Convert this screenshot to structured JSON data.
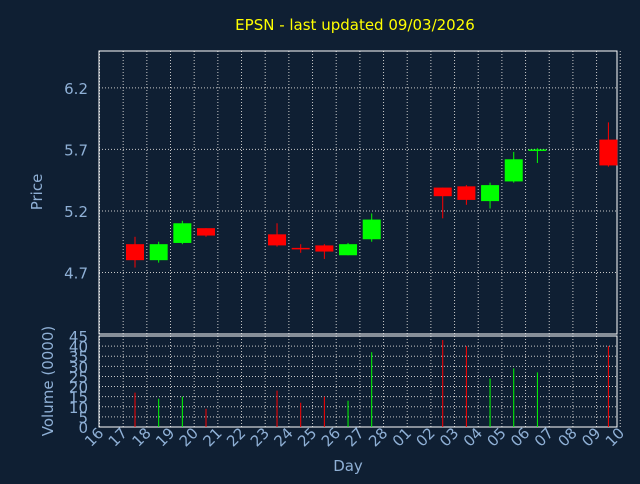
{
  "chart_data": {
    "type": "candlestick",
    "title": "EPSN - last updated 09/03/2026",
    "ylabel": "Price",
    "volume_ylabel": "Volume (0000)",
    "xlabel": "Day",
    "x_ticks": [
      "16",
      "17",
      "18",
      "19",
      "20",
      "21",
      "22",
      "23",
      "24",
      "25",
      "26",
      "27",
      "28",
      "01",
      "02",
      "03",
      "04",
      "05",
      "06",
      "07",
      "08",
      "09",
      "10"
    ],
    "ylim": [
      4.2,
      6.5
    ],
    "y_ticks": [
      "4.7",
      "5.2",
      "5.7",
      "6.2"
    ],
    "volume_ylim": [
      0,
      45
    ],
    "volume_ticks": [
      "0",
      "5",
      "10",
      "15",
      "20",
      "25",
      "30",
      "35",
      "40",
      "45"
    ],
    "grid": true,
    "colors": {
      "background": "#0f1f33",
      "plot_border": "#ffffff",
      "grid": "#c8c8c8",
      "title": "#ffff00",
      "axis_text": "#8fb0d6",
      "up": "#00ff00",
      "down": "#ff0000"
    },
    "candles": [
      {
        "day": "17",
        "open": 4.93,
        "high": 4.99,
        "low": 4.74,
        "close": 4.8
      },
      {
        "day": "18",
        "open": 4.8,
        "high": 4.95,
        "low": 4.78,
        "close": 4.93
      },
      {
        "day": "19",
        "open": 4.94,
        "high": 5.12,
        "low": 4.93,
        "close": 5.1
      },
      {
        "day": "20",
        "open": 5.06,
        "high": 5.06,
        "low": 4.99,
        "close": 5.0
      },
      {
        "day": "23",
        "open": 5.01,
        "high": 5.1,
        "low": 4.91,
        "close": 4.92
      },
      {
        "day": "24",
        "open": 4.9,
        "high": 4.93,
        "low": 4.86,
        "close": 4.89
      },
      {
        "day": "25",
        "open": 4.92,
        "high": 4.93,
        "low": 4.81,
        "close": 4.87
      },
      {
        "day": "26",
        "open": 4.84,
        "high": 4.94,
        "low": 4.84,
        "close": 4.93
      },
      {
        "day": "27",
        "open": 4.97,
        "high": 5.18,
        "low": 4.95,
        "close": 5.13
      },
      {
        "day": "02",
        "open": 5.39,
        "high": 5.39,
        "low": 5.14,
        "close": 5.32
      },
      {
        "day": "03",
        "open": 5.4,
        "high": 5.41,
        "low": 5.25,
        "close": 5.29
      },
      {
        "day": "04",
        "open": 5.28,
        "high": 5.43,
        "low": 5.22,
        "close": 5.41
      },
      {
        "day": "05",
        "open": 5.44,
        "high": 5.68,
        "low": 5.43,
        "close": 5.62
      },
      {
        "day": "06",
        "open": 5.69,
        "high": 5.71,
        "low": 5.59,
        "close": 5.7
      },
      {
        "day": "09",
        "open": 5.78,
        "high": 5.92,
        "low": 5.56,
        "close": 5.57
      }
    ],
    "volume": [
      {
        "day": "17",
        "value": 17
      },
      {
        "day": "18",
        "value": 14
      },
      {
        "day": "19",
        "value": 15
      },
      {
        "day": "20",
        "value": 9
      },
      {
        "day": "23",
        "value": 18
      },
      {
        "day": "24",
        "value": 12
      },
      {
        "day": "25",
        "value": 15
      },
      {
        "day": "26",
        "value": 13
      },
      {
        "day": "27",
        "value": 37
      },
      {
        "day": "02",
        "value": 43
      },
      {
        "day": "03",
        "value": 40
      },
      {
        "day": "04",
        "value": 24
      },
      {
        "day": "05",
        "value": 29
      },
      {
        "day": "06",
        "value": 27
      },
      {
        "day": "09",
        "value": 40
      }
    ]
  }
}
